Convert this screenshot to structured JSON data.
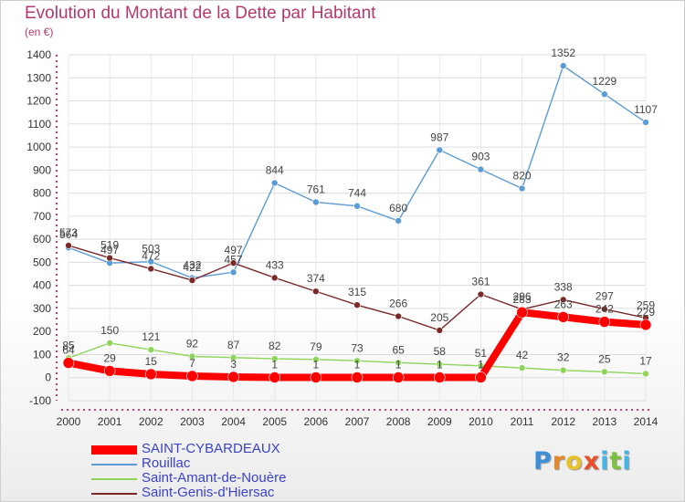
{
  "chart_data": {
    "type": "line",
    "title": "Evolution du Montant de la Dette par Habitant",
    "subtitle": "(en €)",
    "x": [
      "2000",
      "2001",
      "2002",
      "2003",
      "2004",
      "2005",
      "2006",
      "2007",
      "2008",
      "2009",
      "2010",
      "2011",
      "2012",
      "2013",
      "2014"
    ],
    "yticks": [
      "-100",
      "0",
      "100",
      "200",
      "300",
      "400",
      "500",
      "600",
      "700",
      "800",
      "900",
      "1000",
      "1100",
      "1200",
      "1300",
      "1400"
    ],
    "ylim": [
      -100,
      1400
    ],
    "grid": true,
    "legend": "bottom-left",
    "series": [
      {
        "name": "Rouillac",
        "color": "#5b9bd5",
        "values": [
          564,
          497,
          503,
          432,
          457,
          844,
          761,
          744,
          680,
          987,
          903,
          820,
          1352,
          1229,
          1107
        ],
        "labels": [
          "564",
          "497",
          "503",
          "432",
          "457",
          "844",
          "761",
          "744",
          "680",
          "987",
          "903",
          "820",
          "1352",
          "1229",
          "1107"
        ]
      },
      {
        "name": "Saint-Genis-d'Hiersac",
        "color": "#7b2a2a",
        "values": [
          573,
          519,
          472,
          422,
          497,
          433,
          374,
          315,
          266,
          205,
          361,
          296,
          338,
          297,
          259
        ],
        "labels": [
          "573",
          "519",
          "472",
          "422",
          "497",
          "433",
          "374",
          "315",
          "266",
          "205",
          "361",
          "296",
          "338",
          "297",
          "259"
        ]
      },
      {
        "name": "Saint-Amant-de-Nouère",
        "color": "#8dd55a",
        "values": [
          85,
          150,
          121,
          92,
          87,
          82,
          79,
          73,
          65,
          58,
          51,
          42,
          32,
          25,
          17
        ],
        "labels": [
          "85",
          "150",
          "121",
          "92",
          "87",
          "82",
          "79",
          "73",
          "65",
          "58",
          "51",
          "42",
          "32",
          "25",
          "17"
        ]
      },
      {
        "name": "SAINT-CYBARDEAUX",
        "color": "#ff0000",
        "values": [
          64,
          29,
          15,
          7,
          3,
          1,
          1,
          1,
          1,
          1,
          1,
          283,
          263,
          242,
          229
        ],
        "labels": [
          "64",
          "29",
          "15",
          "7",
          "3",
          "1",
          "1",
          "1",
          "1",
          "1",
          "1",
          "283",
          "263",
          "242",
          "229"
        ]
      }
    ]
  },
  "legend_items": [
    {
      "name": "SAINT-CYBARDEAUX",
      "color": "#ff0000",
      "style": "thick"
    },
    {
      "name": "Rouillac",
      "color": "#5b9bd5",
      "style": "thin"
    },
    {
      "name": "Saint-Amant-de-Nouère",
      "color": "#8dd55a",
      "style": "thin"
    },
    {
      "name": "Saint-Genis-d'Hiersac",
      "color": "#7b2a2a",
      "style": "thin"
    }
  ],
  "logo": {
    "letters": [
      "P",
      "r",
      "o",
      "x",
      "i",
      "t",
      "i"
    ],
    "colors": [
      "#3d8fd8",
      "#e8872b",
      "#e8c22b",
      "#e8502b",
      "#45b5e8",
      "#7cc142",
      "#45b5e8"
    ]
  }
}
